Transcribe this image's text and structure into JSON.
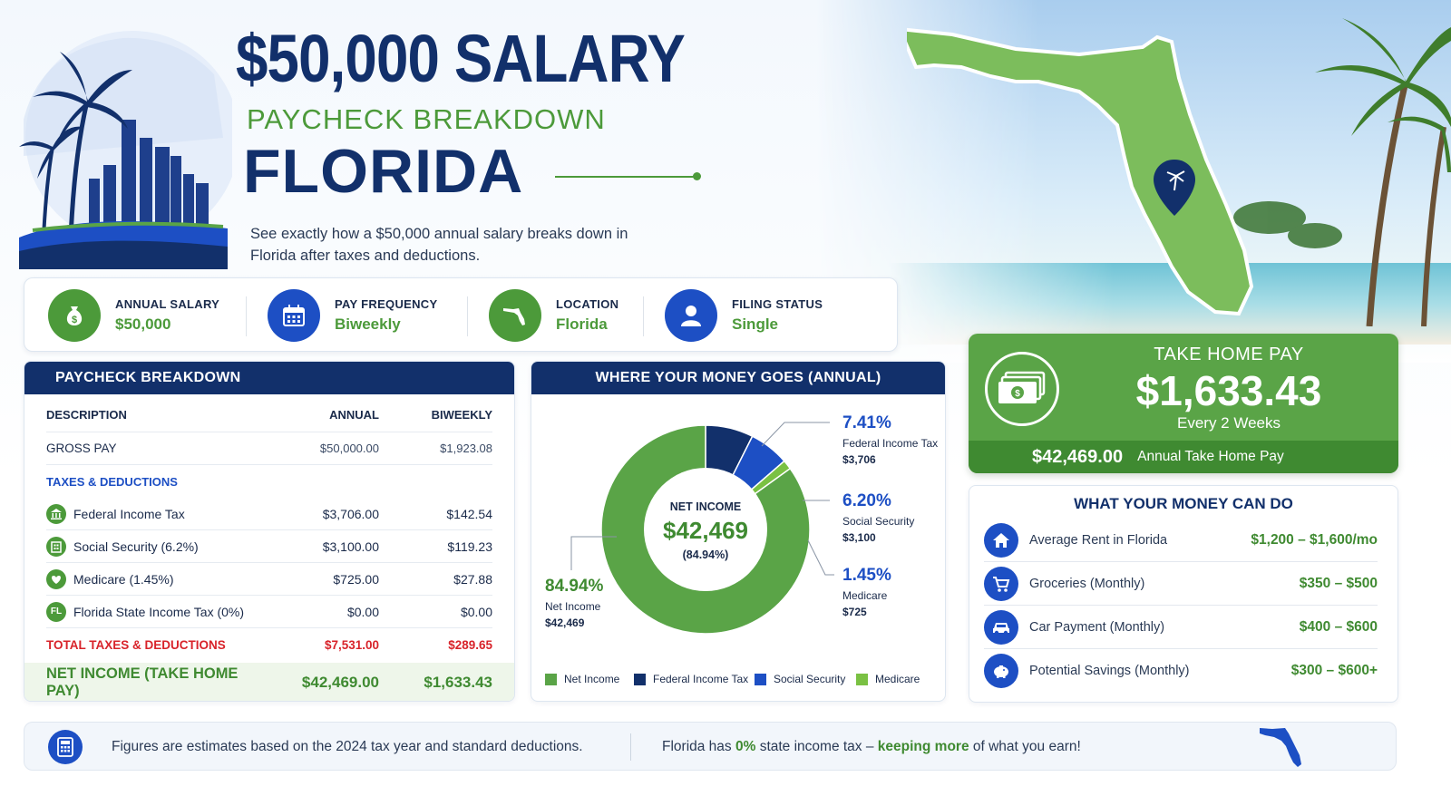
{
  "hero": {
    "title": "$50,000 SALARY",
    "subtitle": "PAYCHECK BREAKDOWN",
    "state": "FLORIDA",
    "description": "See exactly how a $50,000 annual salary breaks down in Florida after taxes and deductions."
  },
  "info": [
    {
      "label": "ANNUAL SALARY",
      "value": "$50,000",
      "icon": "money-bag-icon"
    },
    {
      "label": "PAY FREQUENCY",
      "value": "Biweekly",
      "icon": "calendar-icon"
    },
    {
      "label": "LOCATION",
      "value": "Florida",
      "icon": "florida-icon"
    },
    {
      "label": "FILING STATUS",
      "value": "Single",
      "icon": "user-icon"
    }
  ],
  "breakdown": {
    "title": "PAYCHECK BREAKDOWN",
    "headers": {
      "description": "DESCRIPTION",
      "annual": "ANNUAL",
      "biweekly": "BIWEEKLY"
    },
    "gross": {
      "label": "GROSS PAY",
      "annual": "$50,000.00",
      "biweekly": "$1,923.08"
    },
    "section_label": "TAXES & DEDUCTIONS",
    "rows": [
      {
        "label": "Federal Income Tax",
        "annual": "$3,706.00",
        "biweekly": "$142.54",
        "icon": "bank-icon"
      },
      {
        "label": "Social Security (6.2%)",
        "annual": "$3,100.00",
        "biweekly": "$119.23",
        "icon": "building-icon"
      },
      {
        "label": "Medicare (1.45%)",
        "annual": "$725.00",
        "biweekly": "$27.88",
        "icon": "heart-icon"
      },
      {
        "label": "Florida State Income Tax (0%)",
        "annual": "$0.00",
        "biweekly": "$0.00",
        "icon": "fl-badge-icon",
        "icon_text": "FL"
      }
    ],
    "total": {
      "label": "TOTAL TAXES & DEDUCTIONS",
      "annual": "$7,531.00",
      "biweekly": "$289.65"
    },
    "net": {
      "label": "NET INCOME (TAKE HOME PAY)",
      "annual": "$42,469.00",
      "biweekly": "$1,633.43"
    }
  },
  "donut": {
    "title": "WHERE YOUR MONEY GOES (ANNUAL)",
    "center_label": "NET INCOME",
    "center_value": "$42,469",
    "center_pct": "(84.94%)",
    "callouts": {
      "federal": {
        "pct": "7.41%",
        "label": "Federal Income Tax",
        "value": "$3,706"
      },
      "social": {
        "pct": "6.20%",
        "label": "Social Security",
        "value": "$3,100"
      },
      "medicare": {
        "pct": "1.45%",
        "label": "Medicare",
        "value": "$725"
      },
      "net": {
        "pct": "84.94%",
        "label": "Net Income",
        "value": "$42,469"
      }
    },
    "legend": [
      "Net Income",
      "Federal Income Tax",
      "Social Security",
      "Medicare"
    ]
  },
  "chart_data": {
    "type": "pie",
    "title": "WHERE YOUR MONEY GOES (ANNUAL)",
    "categories": [
      "Net Income",
      "Federal Income Tax",
      "Social Security",
      "Medicare"
    ],
    "values": [
      42469,
      3706,
      3100,
      725
    ],
    "percentages": [
      84.94,
      7.41,
      6.2,
      1.45
    ],
    "colors": [
      "#5aa447",
      "#12306b",
      "#1d4fc4",
      "#7ac143"
    ],
    "legend": "bottom"
  },
  "take_home": {
    "title": "TAKE HOME PAY",
    "amount": "$1,633.43",
    "period": "Every 2 Weeks",
    "annual_amount": "$42,469.00",
    "annual_label": "Annual Take Home Pay"
  },
  "money_can_do": {
    "title": "WHAT YOUR MONEY CAN DO",
    "items": [
      {
        "label": "Average Rent in Florida",
        "value": "$1,200 – $1,600/mo",
        "icon": "house-icon"
      },
      {
        "label": "Groceries (Monthly)",
        "value": "$350 – $500",
        "icon": "cart-icon"
      },
      {
        "label": "Car Payment (Monthly)",
        "value": "$400 – $600",
        "icon": "car-icon"
      },
      {
        "label": "Potential Savings (Monthly)",
        "value": "$300 – $600+",
        "icon": "piggy-bank-icon"
      }
    ]
  },
  "footer": {
    "note": "Figures are estimates based on the 2024 tax year and standard deductions.",
    "fact_prefix": "Florida has ",
    "fact_highlight1": "0%",
    "fact_middle": " state income tax – ",
    "fact_highlight2": "keeping more",
    "fact_suffix": " of what you earn!"
  },
  "colors": {
    "navy": "#12306b",
    "green": "#5aa447",
    "blue": "#1d4fc4",
    "red": "#d8232a"
  }
}
